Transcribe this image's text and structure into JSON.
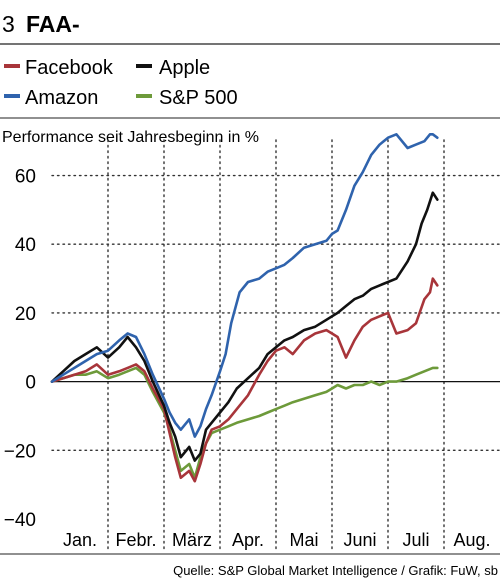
{
  "chart_data": {
    "type": "line",
    "figure_number": "3",
    "title": "FAA-",
    "subtitle": "Performance seit Jahresbeginn in %",
    "source": "Quelle: S&P Global Market Intelligence / Grafik: FuW, sb",
    "xlabel": "",
    "ylabel": "",
    "ylim": [
      -40,
      75
    ],
    "yticks": [
      -40,
      -20,
      0,
      20,
      40,
      60
    ],
    "xlim": [
      0,
      8
    ],
    "month_labels": [
      "Jan.",
      "Febr.",
      "März",
      "Apr.",
      "Mai",
      "Juni",
      "Juli",
      "Aug."
    ],
    "grid": "dotted vertical month separators and dotted horizontal gridlines",
    "legend_position": "top",
    "series": [
      {
        "name": "Facebook",
        "color": "#a8353a",
        "x": [
          0.0,
          0.2,
          0.4,
          0.6,
          0.8,
          1.0,
          1.2,
          1.35,
          1.5,
          1.65,
          1.8,
          2.0,
          2.1,
          2.2,
          2.3,
          2.45,
          2.55,
          2.65,
          2.75,
          2.85,
          3.0,
          3.15,
          3.3,
          3.5,
          3.7,
          3.85,
          4.0,
          4.15,
          4.3,
          4.5,
          4.7,
          4.9,
          5.0,
          5.1,
          5.25,
          5.4,
          5.55,
          5.7,
          5.85,
          6.0,
          6.15,
          6.35,
          6.5,
          6.65,
          6.75,
          6.8,
          6.88
        ],
        "y": [
          0,
          1,
          2,
          3,
          5,
          2,
          3,
          4,
          5,
          3,
          -2,
          -8,
          -15,
          -22,
          -28,
          -26,
          -29,
          -24,
          -18,
          -14,
          -13,
          -11,
          -8,
          -4,
          2,
          6,
          9,
          10,
          8,
          12,
          14,
          15,
          14,
          13,
          7,
          12,
          16,
          18,
          19,
          20,
          14,
          15,
          17,
          24,
          26,
          30,
          28
        ]
      },
      {
        "name": "Apple",
        "color": "#111111",
        "x": [
          0.0,
          0.2,
          0.4,
          0.6,
          0.8,
          1.0,
          1.2,
          1.35,
          1.5,
          1.65,
          1.8,
          2.0,
          2.1,
          2.2,
          2.3,
          2.45,
          2.55,
          2.65,
          2.75,
          2.85,
          3.0,
          3.15,
          3.3,
          3.5,
          3.7,
          3.85,
          4.0,
          4.15,
          4.3,
          4.5,
          4.7,
          4.9,
          5.0,
          5.1,
          5.25,
          5.4,
          5.55,
          5.7,
          5.85,
          6.0,
          6.15,
          6.35,
          6.5,
          6.6,
          6.7,
          6.8,
          6.88
        ],
        "y": [
          0,
          3,
          6,
          8,
          10,
          7,
          10,
          13,
          10,
          6,
          0,
          -7,
          -12,
          -16,
          -22,
          -19,
          -23,
          -21,
          -14,
          -12,
          -9,
          -6,
          -2,
          1,
          4,
          8,
          10,
          12,
          13,
          15,
          16,
          18,
          19,
          20,
          22,
          24,
          25,
          27,
          28,
          29,
          30,
          35,
          40,
          46,
          50,
          55,
          53
        ]
      },
      {
        "name": "Amazon",
        "color": "#2f63ad",
        "x": [
          0.0,
          0.2,
          0.4,
          0.6,
          0.8,
          1.0,
          1.2,
          1.35,
          1.5,
          1.65,
          1.8,
          2.0,
          2.1,
          2.2,
          2.3,
          2.45,
          2.55,
          2.65,
          2.75,
          2.85,
          3.0,
          3.1,
          3.2,
          3.35,
          3.5,
          3.7,
          3.85,
          4.0,
          4.15,
          4.3,
          4.5,
          4.7,
          4.9,
          5.0,
          5.1,
          5.25,
          5.4,
          5.55,
          5.7,
          5.85,
          6.0,
          6.15,
          6.35,
          6.5,
          6.65,
          6.75,
          6.8,
          6.88
        ],
        "y": [
          0,
          2,
          4,
          6,
          8,
          9,
          12,
          14,
          13,
          8,
          2,
          -5,
          -9,
          -12,
          -14,
          -11,
          -16,
          -13,
          -8,
          -4,
          3,
          8,
          17,
          26,
          29,
          30,
          32,
          33,
          34,
          36,
          39,
          40,
          41,
          43,
          44,
          50,
          57,
          61,
          66,
          69,
          71,
          72,
          68,
          69,
          70,
          72,
          72,
          71
        ]
      },
      {
        "name": "S&P 500",
        "color": "#6d9a3a",
        "x": [
          0.0,
          0.2,
          0.4,
          0.6,
          0.8,
          1.0,
          1.2,
          1.35,
          1.5,
          1.65,
          1.8,
          2.0,
          2.1,
          2.2,
          2.3,
          2.45,
          2.55,
          2.65,
          2.75,
          2.85,
          3.0,
          3.15,
          3.3,
          3.5,
          3.7,
          3.85,
          4.0,
          4.15,
          4.3,
          4.5,
          4.7,
          4.9,
          5.0,
          5.1,
          5.25,
          5.4,
          5.55,
          5.7,
          5.85,
          6.0,
          6.15,
          6.35,
          6.5,
          6.65,
          6.8,
          6.88
        ],
        "y": [
          0,
          1,
          2,
          2,
          3,
          1,
          2,
          3,
          4,
          2,
          -3,
          -9,
          -14,
          -20,
          -26,
          -24,
          -28,
          -22,
          -18,
          -15,
          -14,
          -13,
          -12,
          -11,
          -10,
          -9,
          -8,
          -7,
          -6,
          -5,
          -4,
          -3,
          -2,
          -1,
          -2,
          -1,
          -1,
          0,
          -1,
          0,
          0,
          1,
          2,
          3,
          4,
          4
        ]
      }
    ]
  }
}
